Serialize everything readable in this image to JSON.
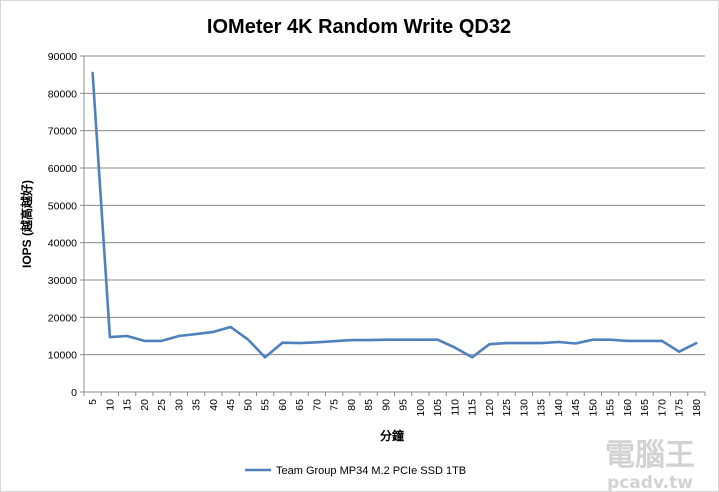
{
  "chart_data": {
    "type": "line",
    "title": "IOMeter 4K Random Write QD32",
    "xlabel": "分鐘",
    "ylabel": "IOPS (越高越好)",
    "ylim": [
      0,
      90000
    ],
    "yticks": [
      0,
      10000,
      20000,
      30000,
      40000,
      50000,
      60000,
      70000,
      80000,
      90000
    ],
    "grid": "horizontal",
    "legend_position": "bottom",
    "categories": [
      "5",
      "10",
      "15",
      "20",
      "25",
      "30",
      "35",
      "40",
      "45",
      "50",
      "55",
      "60",
      "65",
      "70",
      "75",
      "80",
      "85",
      "90",
      "95",
      "100",
      "105",
      "110",
      "115",
      "120",
      "125",
      "130",
      "135",
      "140",
      "145",
      "150",
      "155",
      "160",
      "165",
      "170",
      "175",
      "180"
    ],
    "series": [
      {
        "name": "Team Group MP34 M.2 PCIe SSD 1TB",
        "color": "#4f81bd",
        "values": [
          85500,
          14700,
          15000,
          13700,
          13700,
          15000,
          15500,
          16100,
          17400,
          14100,
          9300,
          13200,
          13100,
          13300,
          13600,
          13900,
          13900,
          14000,
          14000,
          14000,
          14000,
          11900,
          9300,
          12800,
          13100,
          13100,
          13100,
          13400,
          13000,
          14000,
          14000,
          13700,
          13700,
          13700,
          10800,
          13100
        ]
      }
    ]
  },
  "watermark": {
    "line1": "電腦王",
    "line2": "pcadv.tw"
  }
}
